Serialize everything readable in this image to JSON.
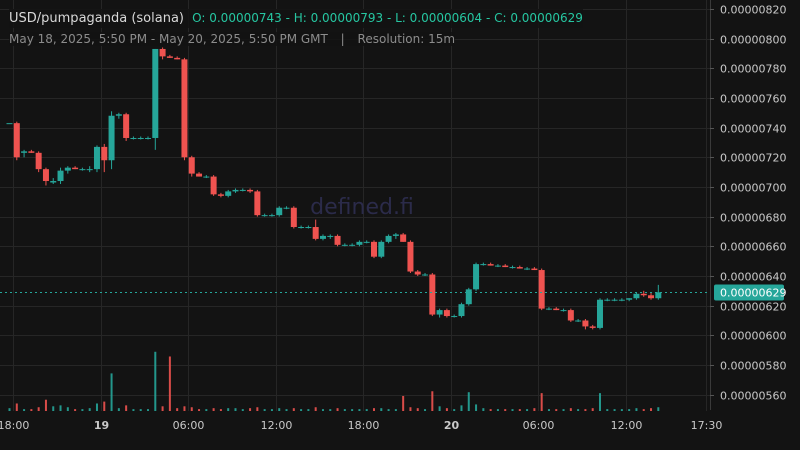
{
  "header": {
    "symbol": "USD/pumpaganda (solana)",
    "ohlc": "O: 0.00000743 - H: 0.00000793 - L: 0.00000604 - C: 0.00000629",
    "range": "May 18, 2025, 5:50 PM - May 20, 2025, 5:50 PM GMT",
    "separator": "|",
    "resolution": "Resolution: 15m"
  },
  "watermark": "defined.fi",
  "colors": {
    "background": "#131313",
    "grid": "#262626",
    "up": "#26a69a",
    "down": "#ef5350",
    "last_price_label": "#26a69a"
  },
  "chart_data": {
    "type": "candlestick",
    "title": "USD/pumpaganda (solana)",
    "y_ticks": [
      "0.00000820",
      "0.00000800",
      "0.00000780",
      "0.00000760",
      "0.00000740",
      "0.00000720",
      "0.00000700",
      "0.00000680",
      "0.00000660",
      "0.00000640",
      "0.00000620",
      "0.00000600",
      "0.00000580",
      "0.00000560"
    ],
    "ylim": [
      5.49e-06,
      8.26e-06
    ],
    "last_price": "0.00000629",
    "x_ticks": [
      {
        "label": "18:00",
        "t": 0.25,
        "bold": false
      },
      {
        "label": "19",
        "t": 6.25,
        "bold": true
      },
      {
        "label": "06:00",
        "t": 12.25,
        "bold": false
      },
      {
        "label": "12:00",
        "t": 18.25,
        "bold": false
      },
      {
        "label": "18:00",
        "t": 24.25,
        "bold": false
      },
      {
        "label": "20",
        "t": 30.25,
        "bold": true
      },
      {
        "label": "06:00",
        "t": 36.25,
        "bold": false
      },
      {
        "label": "12:00",
        "t": 42.25,
        "bold": false
      },
      {
        "label": "17:30",
        "t": 47.75,
        "bold": false
      }
    ],
    "x_unit": "hours since May 18, 2025 17:45 GMT",
    "candles": [
      {
        "t": 0.0,
        "o": 7.43e-06,
        "h": 7.43e-06,
        "l": 7.43e-06,
        "c": 7.43e-06,
        "v": 0.3
      },
      {
        "t": 0.5,
        "o": 7.43e-06,
        "h": 7.44e-06,
        "l": 7.18e-06,
        "c": 7.2e-06,
        "v": 0.8
      },
      {
        "t": 1.0,
        "o": 7.23e-06,
        "h": 7.25e-06,
        "l": 7.2e-06,
        "c": 7.24e-06,
        "v": 0.2
      },
      {
        "t": 1.5,
        "o": 7.24e-06,
        "h": 7.25e-06,
        "l": 7.23e-06,
        "c": 7.23e-06,
        "v": 0.2
      },
      {
        "t": 2.0,
        "o": 7.23e-06,
        "h": 7.24e-06,
        "l": 7.1e-06,
        "c": 7.12e-06,
        "v": 0.4
      },
      {
        "t": 2.5,
        "o": 7.12e-06,
        "h": 7.13e-06,
        "l": 7.01e-06,
        "c": 7.04e-06,
        "v": 1.2
      },
      {
        "t": 3.0,
        "o": 7.03e-06,
        "h": 7.06e-06,
        "l": 7.02e-06,
        "c": 7.04e-06,
        "v": 0.5
      },
      {
        "t": 3.5,
        "o": 7.04e-06,
        "h": 7.13e-06,
        "l": 7.02e-06,
        "c": 7.11e-06,
        "v": 0.6
      },
      {
        "t": 4.0,
        "o": 7.11e-06,
        "h": 7.14e-06,
        "l": 7.09e-06,
        "c": 7.13e-06,
        "v": 0.4
      },
      {
        "t": 4.5,
        "o": 7.13e-06,
        "h": 7.14e-06,
        "l": 7.12e-06,
        "c": 7.12e-06,
        "v": 0.2
      },
      {
        "t": 5.0,
        "o": 7.12e-06,
        "h": 7.13e-06,
        "l": 7.11e-06,
        "c": 7.12e-06,
        "v": 0.2
      },
      {
        "t": 5.5,
        "o": 7.12e-06,
        "h": 7.14e-06,
        "l": 7.1e-06,
        "c": 7.12e-06,
        "v": 0.3
      },
      {
        "t": 6.0,
        "o": 7.12e-06,
        "h": 7.28e-06,
        "l": 7.1e-06,
        "c": 7.27e-06,
        "v": 0.8
      },
      {
        "t": 6.5,
        "o": 7.27e-06,
        "h": 7.29e-06,
        "l": 7.1e-06,
        "c": 7.18e-06,
        "v": 1.0
      },
      {
        "t": 7.0,
        "o": 7.18e-06,
        "h": 7.51e-06,
        "l": 7.12e-06,
        "c": 7.48e-06,
        "v": 4.0
      },
      {
        "t": 7.5,
        "o": 7.48e-06,
        "h": 7.5e-06,
        "l": 7.46e-06,
        "c": 7.49e-06,
        "v": 0.3
      },
      {
        "t": 8.0,
        "o": 7.49e-06,
        "h": 7.5e-06,
        "l": 7.31e-06,
        "c": 7.33e-06,
        "v": 0.6
      },
      {
        "t": 8.5,
        "o": 7.33e-06,
        "h": 7.34e-06,
        "l": 7.32e-06,
        "c": 7.33e-06,
        "v": 0.2
      },
      {
        "t": 9.0,
        "o": 7.33e-06,
        "h": 7.34e-06,
        "l": 7.32e-06,
        "c": 7.33e-06,
        "v": 0.2
      },
      {
        "t": 9.5,
        "o": 7.33e-06,
        "h": 7.34e-06,
        "l": 7.32e-06,
        "c": 7.33e-06,
        "v": 0.2
      },
      {
        "t": 10.0,
        "o": 7.33e-06,
        "h": 7.93e-06,
        "l": 7.25e-06,
        "c": 7.93e-06,
        "v": 6.3
      },
      {
        "t": 10.5,
        "o": 7.93e-06,
        "h": 7.94e-06,
        "l": 7.86e-06,
        "c": 7.88e-06,
        "v": 0.5
      },
      {
        "t": 11.0,
        "o": 7.88e-06,
        "h": 7.89e-06,
        "l": 7.87e-06,
        "c": 7.87e-06,
        "v": 5.8
      },
      {
        "t": 11.5,
        "o": 7.87e-06,
        "h": 7.88e-06,
        "l": 7.86e-06,
        "c": 7.86e-06,
        "v": 0.3
      },
      {
        "t": 12.0,
        "o": 7.86e-06,
        "h": 7.87e-06,
        "l": 7.18e-06,
        "c": 7.2e-06,
        "v": 0.5
      },
      {
        "t": 12.5,
        "o": 7.2e-06,
        "h": 7.21e-06,
        "l": 7.07e-06,
        "c": 7.09e-06,
        "v": 0.4
      },
      {
        "t": 13.0,
        "o": 7.09e-06,
        "h": 7.1e-06,
        "l": 7.07e-06,
        "c": 7.07e-06,
        "v": 0.2
      },
      {
        "t": 13.5,
        "o": 7.07e-06,
        "h": 7.08e-06,
        "l": 7.06e-06,
        "c": 7.07e-06,
        "v": 0.2
      },
      {
        "t": 14.0,
        "o": 7.07e-06,
        "h": 7.08e-06,
        "l": 6.94e-06,
        "c": 6.95e-06,
        "v": 0.3
      },
      {
        "t": 14.5,
        "o": 6.95e-06,
        "h": 6.96e-06,
        "l": 6.93e-06,
        "c": 6.94e-06,
        "v": 0.2
      },
      {
        "t": 15.0,
        "o": 6.94e-06,
        "h": 6.98e-06,
        "l": 6.93e-06,
        "c": 6.97e-06,
        "v": 0.3
      },
      {
        "t": 15.5,
        "o": 6.97e-06,
        "h": 6.99e-06,
        "l": 6.96e-06,
        "c": 6.98e-06,
        "v": 0.3
      },
      {
        "t": 16.0,
        "o": 6.98e-06,
        "h": 6.99e-06,
        "l": 6.97e-06,
        "c": 6.98e-06,
        "v": 0.2
      },
      {
        "t": 16.5,
        "o": 6.98e-06,
        "h": 6.99e-06,
        "l": 6.96e-06,
        "c": 6.97e-06,
        "v": 0.3
      },
      {
        "t": 17.0,
        "o": 6.97e-06,
        "h": 6.98e-06,
        "l": 6.8e-06,
        "c": 6.81e-06,
        "v": 0.4
      },
      {
        "t": 17.5,
        "o": 6.81e-06,
        "h": 6.82e-06,
        "l": 6.8e-06,
        "c": 6.81e-06,
        "v": 0.2
      },
      {
        "t": 18.0,
        "o": 6.81e-06,
        "h": 6.82e-06,
        "l": 6.8e-06,
        "c": 6.81e-06,
        "v": 0.2
      },
      {
        "t": 18.5,
        "o": 6.81e-06,
        "h": 6.87e-06,
        "l": 6.8e-06,
        "c": 6.86e-06,
        "v": 0.3
      },
      {
        "t": 19.0,
        "o": 6.86e-06,
        "h": 6.87e-06,
        "l": 6.85e-06,
        "c": 6.86e-06,
        "v": 0.2
      },
      {
        "t": 19.5,
        "o": 6.86e-06,
        "h": 6.87e-06,
        "l": 6.72e-06,
        "c": 6.73e-06,
        "v": 0.3
      },
      {
        "t": 20.0,
        "o": 6.73e-06,
        "h": 6.74e-06,
        "l": 6.72e-06,
        "c": 6.73e-06,
        "v": 0.2
      },
      {
        "t": 20.5,
        "o": 6.73e-06,
        "h": 6.74e-06,
        "l": 6.72e-06,
        "c": 6.73e-06,
        "v": 0.2
      },
      {
        "t": 21.0,
        "o": 6.73e-06,
        "h": 6.78e-06,
        "l": 6.64e-06,
        "c": 6.65e-06,
        "v": 0.4
      },
      {
        "t": 21.5,
        "o": 6.65e-06,
        "h": 6.68e-06,
        "l": 6.64e-06,
        "c": 6.67e-06,
        "v": 0.2
      },
      {
        "t": 22.0,
        "o": 6.67e-06,
        "h": 6.68e-06,
        "l": 6.65e-06,
        "c": 6.67e-06,
        "v": 0.2
      },
      {
        "t": 22.5,
        "o": 6.67e-06,
        "h": 6.68e-06,
        "l": 6.6e-06,
        "c": 6.61e-06,
        "v": 0.3
      },
      {
        "t": 23.0,
        "o": 6.61e-06,
        "h": 6.62e-06,
        "l": 6.6e-06,
        "c": 6.61e-06,
        "v": 0.2
      },
      {
        "t": 23.5,
        "o": 6.61e-06,
        "h": 6.62e-06,
        "l": 6.6e-06,
        "c": 6.61e-06,
        "v": 0.2
      },
      {
        "t": 24.0,
        "o": 6.61e-06,
        "h": 6.64e-06,
        "l": 6.6e-06,
        "c": 6.63e-06,
        "v": 0.2
      },
      {
        "t": 24.5,
        "o": 6.63e-06,
        "h": 6.64e-06,
        "l": 6.62e-06,
        "c": 6.63e-06,
        "v": 0.2
      },
      {
        "t": 25.0,
        "o": 6.63e-06,
        "h": 6.64e-06,
        "l": 6.52e-06,
        "c": 6.53e-06,
        "v": 0.3
      },
      {
        "t": 25.5,
        "o": 6.53e-06,
        "h": 6.64e-06,
        "l": 6.52e-06,
        "c": 6.63e-06,
        "v": 0.3
      },
      {
        "t": 26.0,
        "o": 6.63e-06,
        "h": 6.68e-06,
        "l": 6.62e-06,
        "c": 6.67e-06,
        "v": 0.2
      },
      {
        "t": 26.5,
        "o": 6.67e-06,
        "h": 6.69e-06,
        "l": 6.65e-06,
        "c": 6.68e-06,
        "v": 0.2
      },
      {
        "t": 27.0,
        "o": 6.68e-06,
        "h": 6.69e-06,
        "l": 6.63e-06,
        "c": 6.63e-06,
        "v": 1.6
      },
      {
        "t": 27.5,
        "o": 6.63e-06,
        "h": 6.64e-06,
        "l": 6.42e-06,
        "c": 6.43e-06,
        "v": 0.4
      },
      {
        "t": 28.0,
        "o": 6.43e-06,
        "h": 6.44e-06,
        "l": 6.4e-06,
        "c": 6.41e-06,
        "v": 0.3
      },
      {
        "t": 28.5,
        "o": 6.41e-06,
        "h": 6.42e-06,
        "l": 6.4e-06,
        "c": 6.41e-06,
        "v": 0.2
      },
      {
        "t": 29.0,
        "o": 6.41e-06,
        "h": 6.42e-06,
        "l": 6.13e-06,
        "c": 6.14e-06,
        "v": 2.1
      },
      {
        "t": 29.5,
        "o": 6.14e-06,
        "h": 6.18e-06,
        "l": 6.12e-06,
        "c": 6.17e-06,
        "v": 0.5
      },
      {
        "t": 30.0,
        "o": 6.17e-06,
        "h": 6.18e-06,
        "l": 6.12e-06,
        "c": 6.13e-06,
        "v": 0.3
      },
      {
        "t": 30.5,
        "o": 6.13e-06,
        "h": 6.14e-06,
        "l": 6.12e-06,
        "c": 6.13e-06,
        "v": 0.2
      },
      {
        "t": 31.0,
        "o": 6.13e-06,
        "h": 6.22e-06,
        "l": 6.12e-06,
        "c": 6.21e-06,
        "v": 0.6
      },
      {
        "t": 31.5,
        "o": 6.21e-06,
        "h": 6.32e-06,
        "l": 6.2e-06,
        "c": 6.31e-06,
        "v": 2.0
      },
      {
        "t": 32.0,
        "o": 6.31e-06,
        "h": 6.49e-06,
        "l": 6.3e-06,
        "c": 6.48e-06,
        "v": 0.7
      },
      {
        "t": 32.5,
        "o": 6.48e-06,
        "h": 6.49e-06,
        "l": 6.47e-06,
        "c": 6.48e-06,
        "v": 0.3
      },
      {
        "t": 33.0,
        "o": 6.48e-06,
        "h": 6.49e-06,
        "l": 6.47e-06,
        "c": 6.47e-06,
        "v": 0.2
      },
      {
        "t": 33.5,
        "o": 6.47e-06,
        "h": 6.48e-06,
        "l": 6.46e-06,
        "c": 6.47e-06,
        "v": 0.2
      },
      {
        "t": 34.0,
        "o": 6.47e-06,
        "h": 6.48e-06,
        "l": 6.46e-06,
        "c": 6.46e-06,
        "v": 0.2
      },
      {
        "t": 34.5,
        "o": 6.46e-06,
        "h": 6.47e-06,
        "l": 6.45e-06,
        "c": 6.46e-06,
        "v": 0.2
      },
      {
        "t": 35.0,
        "o": 6.46e-06,
        "h": 6.47e-06,
        "l": 6.45e-06,
        "c": 6.45e-06,
        "v": 0.2
      },
      {
        "t": 35.5,
        "o": 6.45e-06,
        "h": 6.46e-06,
        "l": 6.44e-06,
        "c": 6.45e-06,
        "v": 0.2
      },
      {
        "t": 36.0,
        "o": 6.45e-06,
        "h": 6.46e-06,
        "l": 6.44e-06,
        "c": 6.44e-06,
        "v": 0.3
      },
      {
        "t": 36.5,
        "o": 6.44e-06,
        "h": 6.45e-06,
        "l": 6.17e-06,
        "c": 6.18e-06,
        "v": 1.9
      },
      {
        "t": 37.0,
        "o": 6.18e-06,
        "h": 6.19e-06,
        "l": 6.17e-06,
        "c": 6.18e-06,
        "v": 0.2
      },
      {
        "t": 37.5,
        "o": 6.18e-06,
        "h": 6.19e-06,
        "l": 6.17e-06,
        "c": 6.17e-06,
        "v": 0.2
      },
      {
        "t": 38.0,
        "o": 6.17e-06,
        "h": 6.18e-06,
        "l": 6.16e-06,
        "c": 6.17e-06,
        "v": 0.2
      },
      {
        "t": 38.5,
        "o": 6.17e-06,
        "h": 6.18e-06,
        "l": 6.09e-06,
        "c": 6.1e-06,
        "v": 0.3
      },
      {
        "t": 39.0,
        "o": 6.1e-06,
        "h": 6.11e-06,
        "l": 6.09e-06,
        "c": 6.1e-06,
        "v": 0.2
      },
      {
        "t": 39.5,
        "o": 6.1e-06,
        "h": 6.11e-06,
        "l": 6.04e-06,
        "c": 6.06e-06,
        "v": 0.2
      },
      {
        "t": 40.0,
        "o": 6.06e-06,
        "h": 6.07e-06,
        "l": 6.04e-06,
        "c": 6.05e-06,
        "v": 0.3
      },
      {
        "t": 40.5,
        "o": 6.05e-06,
        "h": 6.25e-06,
        "l": 6.04e-06,
        "c": 6.24e-06,
        "v": 1.9
      },
      {
        "t": 41.0,
        "o": 6.24e-06,
        "h": 6.25e-06,
        "l": 6.23e-06,
        "c": 6.24e-06,
        "v": 0.2
      },
      {
        "t": 41.5,
        "o": 6.24e-06,
        "h": 6.25e-06,
        "l": 6.23e-06,
        "c": 6.24e-06,
        "v": 0.2
      },
      {
        "t": 42.0,
        "o": 6.24e-06,
        "h": 6.25e-06,
        "l": 6.23e-06,
        "c": 6.24e-06,
        "v": 0.2
      },
      {
        "t": 42.5,
        "o": 6.24e-06,
        "h": 6.25e-06,
        "l": 6.23e-06,
        "c": 6.25e-06,
        "v": 0.2
      },
      {
        "t": 43.0,
        "o": 6.25e-06,
        "h": 6.29e-06,
        "l": 6.24e-06,
        "c": 6.28e-06,
        "v": 0.3
      },
      {
        "t": 43.5,
        "o": 6.28e-06,
        "h": 6.3e-06,
        "l": 6.26e-06,
        "c": 6.27e-06,
        "v": 0.2
      },
      {
        "t": 44.0,
        "o": 6.27e-06,
        "h": 6.29e-06,
        "l": 6.24e-06,
        "c": 6.25e-06,
        "v": 0.3
      },
      {
        "t": 44.5,
        "o": 6.25e-06,
        "h": 6.34e-06,
        "l": 6.24e-06,
        "c": 6.29e-06,
        "v": 0.4
      }
    ]
  }
}
